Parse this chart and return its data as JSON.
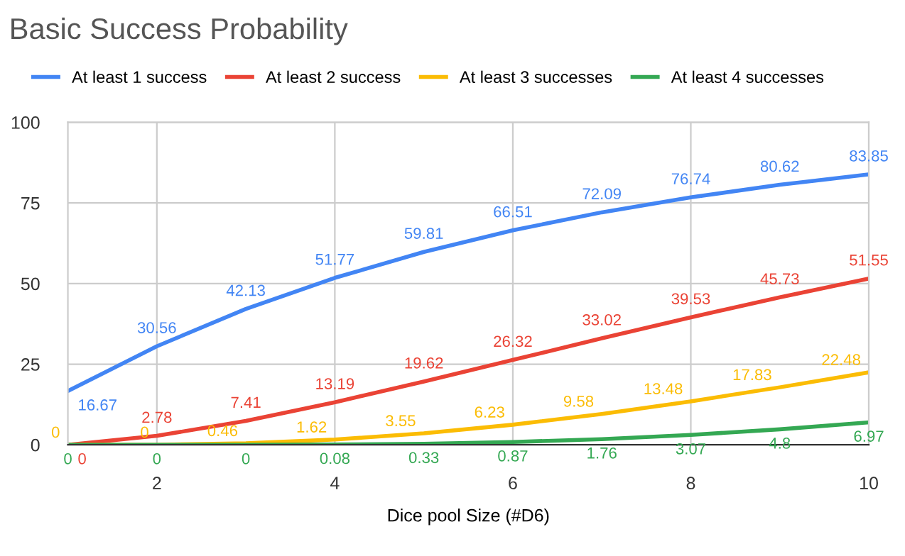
{
  "chart_data": {
    "type": "line",
    "title": "Basic Success Probability",
    "xlabel": "Dice pool Size (#D6)",
    "x": [
      1,
      2,
      3,
      4,
      5,
      6,
      7,
      8,
      9,
      10
    ],
    "series": [
      {
        "name": "At least 1 success",
        "color": "#4285f4",
        "values": [
          16.67,
          30.56,
          42.13,
          51.77,
          59.81,
          66.51,
          72.09,
          76.74,
          80.62,
          83.85
        ]
      },
      {
        "name": "At least 2 success",
        "color": "#ea4335",
        "values": [
          0,
          2.78,
          7.41,
          13.19,
          19.62,
          26.32,
          33.02,
          39.53,
          45.73,
          51.55
        ]
      },
      {
        "name": "At least 3 successes",
        "color": "#fbbc04",
        "values": [
          0,
          0,
          0.46,
          1.62,
          3.55,
          6.23,
          9.58,
          13.48,
          17.83,
          22.48
        ]
      },
      {
        "name": "At least 4 successes",
        "color": "#34a853",
        "values": [
          0,
          0,
          0,
          0.08,
          0.33,
          0.87,
          1.76,
          3.07,
          4.8,
          6.97
        ]
      }
    ],
    "xlim": [
      1,
      10
    ],
    "xticks": [
      2,
      4,
      6,
      8,
      10
    ],
    "ylim": [
      0,
      100
    ],
    "yticks": [
      0,
      25,
      50,
      75,
      100
    ],
    "grid": true,
    "legend": "top left",
    "marker": "none",
    "line_style": "solid",
    "data_labels": true
  }
}
